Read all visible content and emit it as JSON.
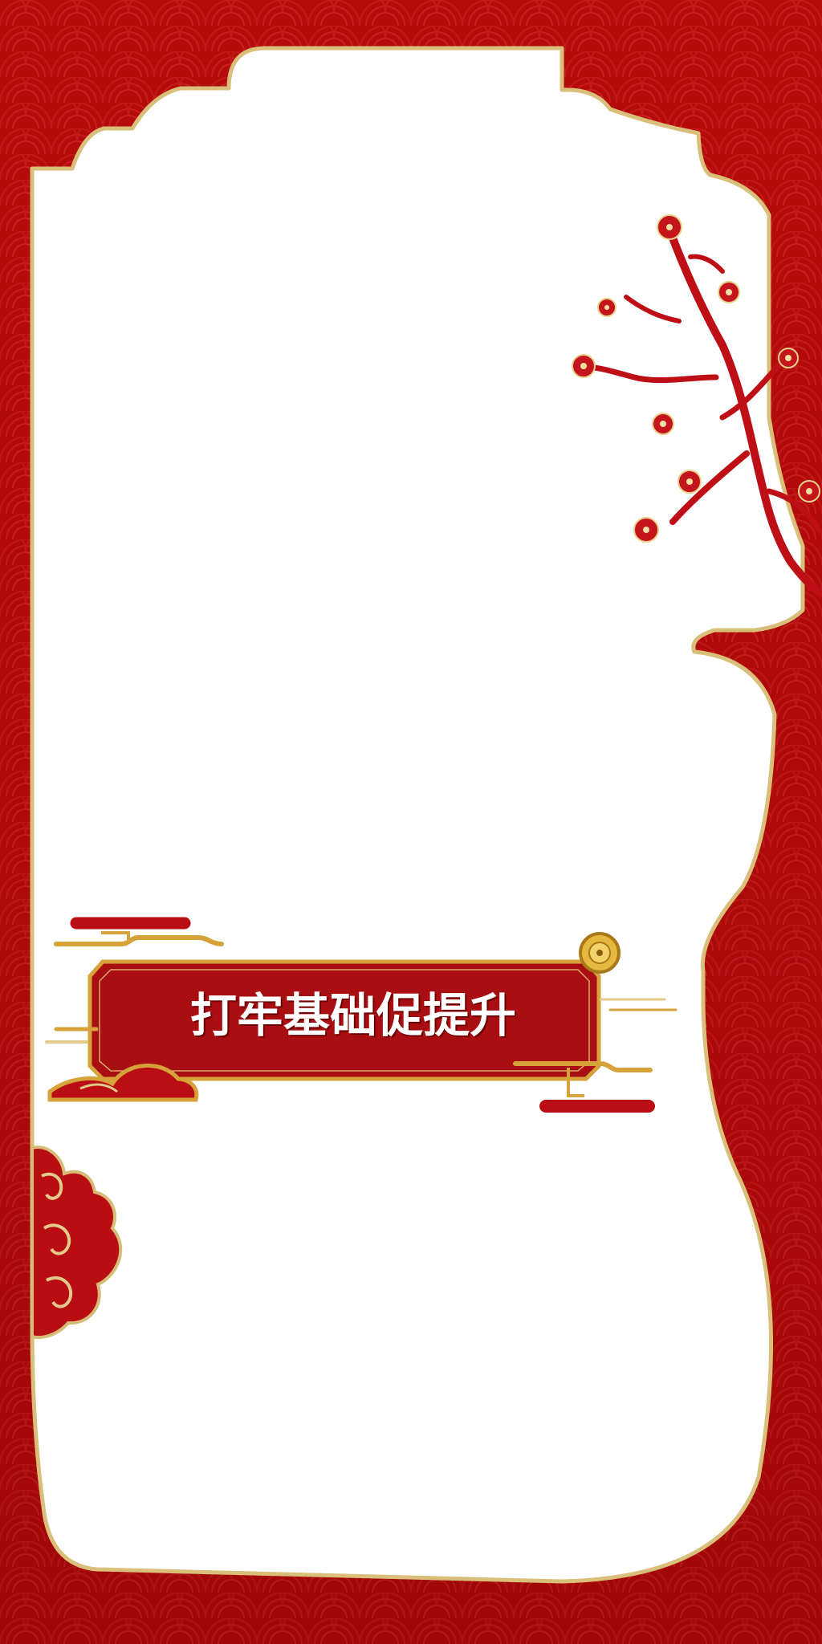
{
  "title": "打牢基础促提升",
  "icons": {
    "frame": "scroll-frame-icon",
    "plum": "plum-blossom-branch-icon",
    "cloud": "auspicious-cloud-icon",
    "medallion": "golden-flower-medallion-icon"
  },
  "colors": {
    "background_red": "#b30b0b",
    "frame_white": "#ffffff",
    "gold_border": "#d9bf7a",
    "banner_red": "#a90f12",
    "gold_accent": "#d6a23a"
  }
}
